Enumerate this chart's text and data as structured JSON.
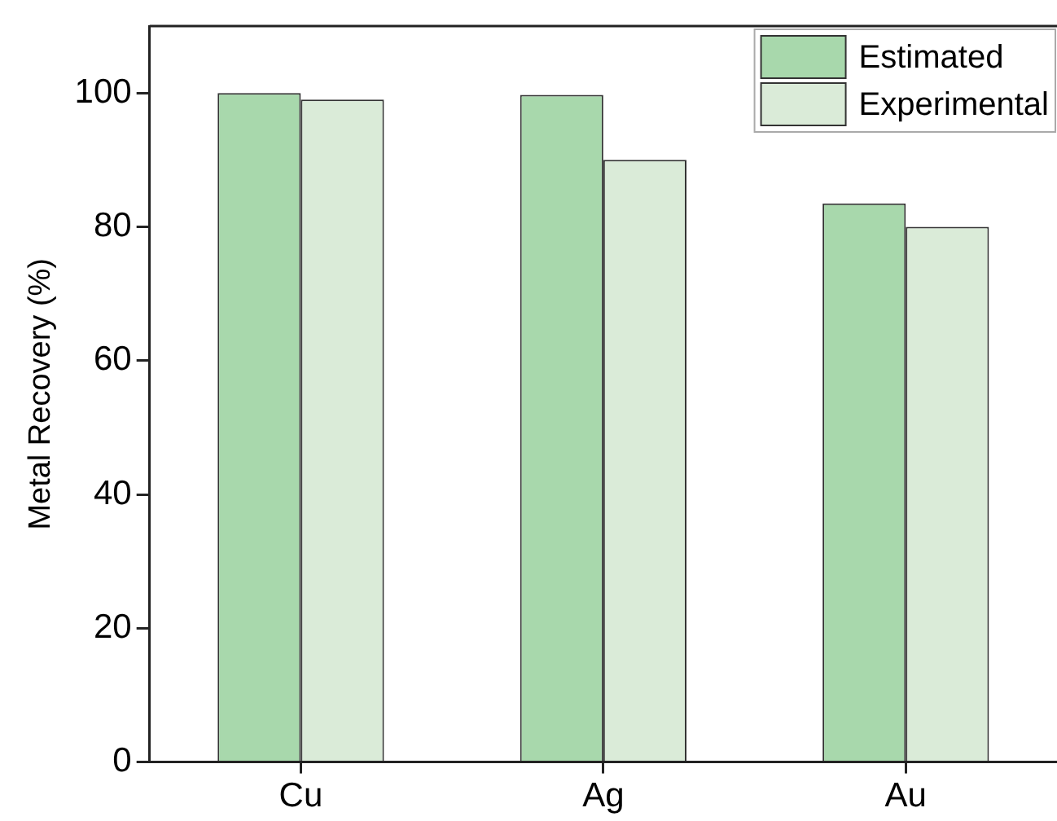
{
  "chart_data": {
    "type": "bar",
    "ylabel": "Metal Recovery (%)",
    "categories": [
      "Cu",
      "Ag",
      "Au"
    ],
    "series": [
      {
        "name": "Estimated",
        "color": "#a8d8ac",
        "values": [
          100,
          99.7,
          83.5
        ]
      },
      {
        "name": "Experimental",
        "color": "#daebd8",
        "values": [
          99,
          90,
          80
        ]
      }
    ],
    "ylim": [
      0,
      110
    ],
    "yticks": [
      0,
      20,
      40,
      60,
      80,
      100
    ],
    "grid": false,
    "legend": "top right"
  }
}
